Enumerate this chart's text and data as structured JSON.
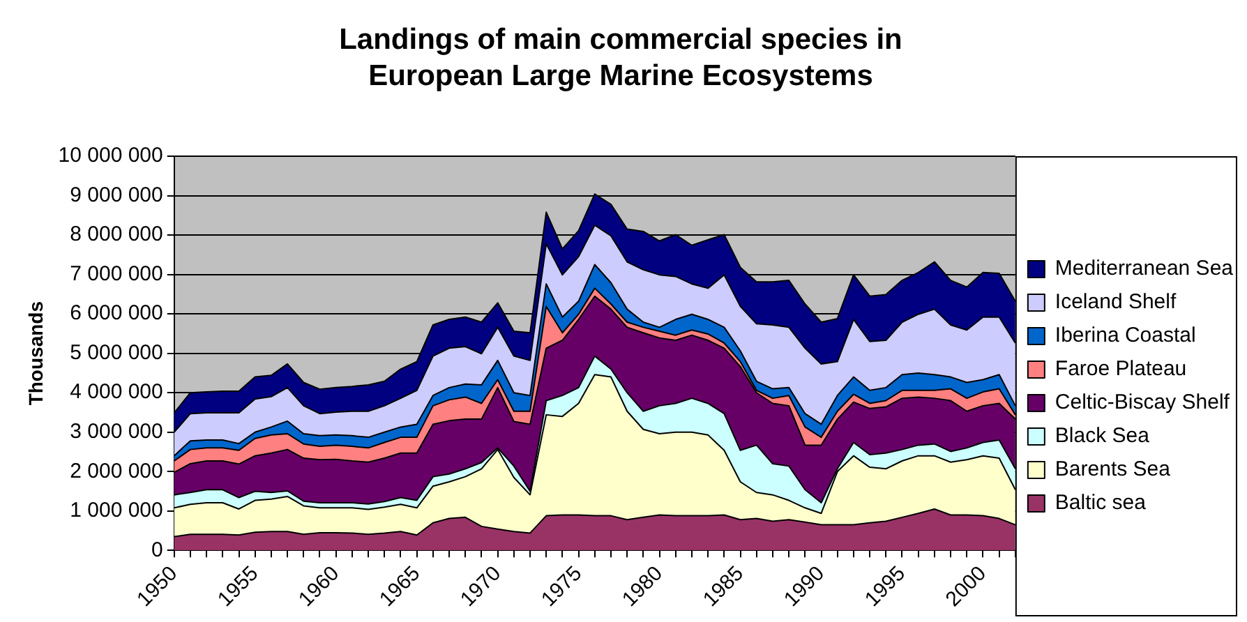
{
  "chart_data": {
    "type": "area",
    "title": "Landings of main commercial species in European Large Marine Ecosystems",
    "ylabel": "Thousands",
    "categories": [
      "1950",
      null,
      null,
      null,
      null,
      "1955",
      null,
      null,
      null,
      null,
      "1960",
      null,
      null,
      null,
      null,
      "1965",
      null,
      null,
      null,
      null,
      "1970",
      null,
      null,
      null,
      null,
      "1975",
      null,
      null,
      null,
      null,
      "1980",
      null,
      null,
      null,
      null,
      "1985",
      null,
      null,
      null,
      null,
      "1990",
      null,
      null,
      null,
      null,
      "1995",
      null,
      null,
      null,
      null,
      "2000",
      null,
      null
    ],
    "stacked": true,
    "grid": "y",
    "legend": "right",
    "ylim": [
      0,
      10000000
    ],
    "yticks": [
      {
        "value": 0,
        "label": "0"
      },
      {
        "value": 1000000,
        "label": "1 000 000"
      },
      {
        "value": 2000000,
        "label": "2 000 000"
      },
      {
        "value": 3000000,
        "label": "3 000 000"
      },
      {
        "value": 4000000,
        "label": "4 000 000"
      },
      {
        "value": 5000000,
        "label": "5 000 000"
      },
      {
        "value": 6000000,
        "label": "6 000 000"
      },
      {
        "value": 7000000,
        "label": "7 000 000"
      },
      {
        "value": 8000000,
        "label": "8 000 000"
      },
      {
        "value": 9000000,
        "label": "9 000 000"
      },
      {
        "value": 10000000,
        "label": "10 000 000"
      }
    ],
    "series": [
      {
        "name": "Baltic sea",
        "color": "#993366",
        "values": [
          350000,
          410000,
          410000,
          410000,
          390000,
          460000,
          480000,
          480000,
          410000,
          450000,
          450000,
          440000,
          410000,
          440000,
          480000,
          390000,
          700000,
          810000,
          840000,
          610000,
          540000,
          480000,
          440000,
          880000,
          900000,
          900000,
          880000,
          880000,
          780000,
          840000,
          900000,
          880000,
          880000,
          880000,
          900000,
          780000,
          810000,
          740000,
          780000,
          720000,
          650000,
          650000,
          650000,
          700000,
          740000,
          840000,
          940000,
          1050000,
          900000,
          900000,
          880000,
          810000,
          650000
        ]
      },
      {
        "name": "Barents Sea",
        "color": "#ffffcc",
        "values": [
          730000,
          760000,
          800000,
          800000,
          660000,
          810000,
          820000,
          890000,
          720000,
          630000,
          630000,
          640000,
          630000,
          660000,
          690000,
          690000,
          930000,
          930000,
          1030000,
          1460000,
          2020000,
          1370000,
          970000,
          2560000,
          2500000,
          2830000,
          3580000,
          3520000,
          2750000,
          2230000,
          2060000,
          2120000,
          2120000,
          2050000,
          1640000,
          960000,
          660000,
          670000,
          490000,
          360000,
          290000,
          1350000,
          1750000,
          1410000,
          1330000,
          1430000,
          1460000,
          1350000,
          1340000,
          1400000,
          1520000,
          1530000,
          890000
        ]
      },
      {
        "name": "Black Sea",
        "color": "#ccffff",
        "values": [
          330000,
          300000,
          330000,
          330000,
          290000,
          230000,
          170000,
          140000,
          120000,
          130000,
          130000,
          130000,
          140000,
          140000,
          170000,
          190000,
          240000,
          200000,
          200000,
          160000,
          40000,
          290000,
          90000,
          360000,
          530000,
          400000,
          470000,
          200000,
          470000,
          460000,
          710000,
          730000,
          860000,
          800000,
          930000,
          800000,
          1200000,
          790000,
          870000,
          460000,
          270000,
          70000,
          340000,
          320000,
          400000,
          290000,
          270000,
          300000,
          270000,
          300000,
          340000,
          460000,
          530000
        ]
      },
      {
        "name": "Celtic-Biscay Shelf",
        "color": "#660066",
        "values": [
          570000,
          730000,
          730000,
          730000,
          850000,
          900000,
          1000000,
          1050000,
          1090000,
          1090000,
          1100000,
          1060000,
          1060000,
          1100000,
          1130000,
          1200000,
          1330000,
          1350000,
          1260000,
          1100000,
          1530000,
          1130000,
          1700000,
          1330000,
          1400000,
          1730000,
          1520000,
          1520000,
          1660000,
          1990000,
          1720000,
          1600000,
          1600000,
          1600000,
          1660000,
          2120000,
          1330000,
          1530000,
          1530000,
          1130000,
          1460000,
          1260000,
          1020000,
          1170000,
          1170000,
          1300000,
          1220000,
          1160000,
          1290000,
          930000,
          930000,
          930000,
          1260000
        ]
      },
      {
        "name": "Faroe Plateau",
        "color": "#ff8080",
        "values": [
          290000,
          360000,
          330000,
          330000,
          350000,
          440000,
          460000,
          400000,
          360000,
          340000,
          360000,
          370000,
          360000,
          400000,
          400000,
          400000,
          470000,
          530000,
          560000,
          400000,
          200000,
          260000,
          330000,
          1060000,
          190000,
          130000,
          200000,
          130000,
          130000,
          140000,
          170000,
          130000,
          130000,
          160000,
          130000,
          130000,
          60000,
          130000,
          260000,
          460000,
          200000,
          200000,
          200000,
          130000,
          160000,
          200000,
          170000,
          200000,
          300000,
          330000,
          350000,
          370000,
          110000
        ]
      },
      {
        "name": "Iberina Coastal",
        "color": "#0066cc",
        "values": [
          130000,
          220000,
          200000,
          200000,
          170000,
          160000,
          200000,
          320000,
          260000,
          270000,
          260000,
          270000,
          270000,
          260000,
          260000,
          330000,
          260000,
          310000,
          330000,
          470000,
          490000,
          470000,
          400000,
          570000,
          400000,
          330000,
          600000,
          540000,
          330000,
          130000,
          100000,
          400000,
          400000,
          370000,
          400000,
          270000,
          230000,
          240000,
          200000,
          340000,
          330000,
          400000,
          440000,
          330000,
          330000,
          400000,
          440000,
          400000,
          300000,
          400000,
          310000,
          360000,
          230000
        ]
      },
      {
        "name": "Iceland Shelf",
        "color": "#ccccff",
        "values": [
          600000,
          690000,
          690000,
          690000,
          780000,
          840000,
          770000,
          850000,
          710000,
          560000,
          580000,
          620000,
          660000,
          670000,
          730000,
          860000,
          1000000,
          1000000,
          950000,
          790000,
          840000,
          930000,
          890000,
          1020000,
          1070000,
          1130000,
          1000000,
          1190000,
          1200000,
          1330000,
          1330000,
          1090000,
          770000,
          790000,
          1330000,
          1130000,
          1460000,
          1620000,
          1530000,
          1660000,
          1530000,
          860000,
          1460000,
          1240000,
          1200000,
          1330000,
          1490000,
          1660000,
          1320000,
          1330000,
          1590000,
          1460000,
          1590000
        ]
      },
      {
        "name": "Mediterranean Sea",
        "color": "#000080",
        "values": [
          490000,
          530000,
          530000,
          550000,
          550000,
          560000,
          540000,
          600000,
          590000,
          620000,
          620000,
          630000,
          670000,
          620000,
          740000,
          730000,
          790000,
          730000,
          750000,
          800000,
          620000,
          630000,
          700000,
          800000,
          660000,
          660000,
          790000,
          800000,
          830000,
          970000,
          860000,
          1060000,
          980000,
          1230000,
          1020000,
          990000,
          1060000,
          1090000,
          1190000,
          1120000,
          1060000,
          1090000,
          1130000,
          1150000,
          1160000,
          1060000,
          1060000,
          1200000,
          1130000,
          1090000,
          1130000,
          1110000,
          1060000
        ]
      }
    ]
  }
}
